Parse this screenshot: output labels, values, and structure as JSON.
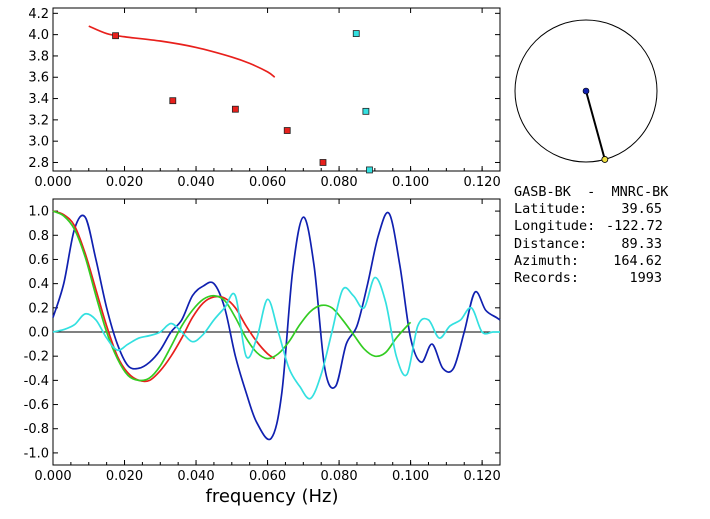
{
  "info": {
    "pair": "GASB-BK  -  MNRC-BK",
    "rows": [
      {
        "label": "Latitude:",
        "value": "39.65"
      },
      {
        "label": "Longitude:",
        "value": "-122.72"
      },
      {
        "label": "Distance:",
        "value": "89.33"
      },
      {
        "label": "Azimuth:",
        "value": "164.62"
      },
      {
        "label": "Records:",
        "value": "1993"
      }
    ]
  },
  "chart_data": [
    {
      "type": "scatter",
      "xlim": [
        0,
        0.125
      ],
      "ylim": [
        2.72,
        4.25
      ],
      "xticks": [
        "0.000",
        "0.020",
        "0.040",
        "0.060",
        "0.080",
        "0.100",
        "0.120"
      ],
      "yticks": [
        "4.2",
        "4.0",
        "3.8",
        "3.6",
        "3.4",
        "3.2",
        "3.0",
        "2.8"
      ],
      "series": [
        {
          "color": "#e8201c",
          "kind": "line",
          "x": [
            0.01,
            0.015,
            0.02,
            0.03,
            0.04,
            0.05,
            0.055,
            0.06,
            0.062
          ],
          "y": [
            4.08,
            4.01,
            3.98,
            3.94,
            3.88,
            3.79,
            3.73,
            3.65,
            3.6
          ]
        },
        {
          "color": "#e8201c",
          "kind": "points",
          "x": [
            0.0175,
            0.0335,
            0.051,
            0.0655,
            0.0755
          ],
          "y": [
            3.99,
            3.38,
            3.3,
            3.1,
            2.8
          ]
        },
        {
          "color": "#33e0e0",
          "kind": "points",
          "x": [
            0.0848,
            0.0875,
            0.0885
          ],
          "y": [
            4.01,
            3.28,
            2.73
          ]
        }
      ]
    },
    {
      "type": "line",
      "xlabel": "frequency (Hz)",
      "xlim": [
        0,
        0.125
      ],
      "ylim": [
        -1.1,
        1.1
      ],
      "xticks": [
        "0.000",
        "0.020",
        "0.040",
        "0.060",
        "0.080",
        "0.100",
        "0.120"
      ],
      "yticks": [
        "1.0",
        "0.8",
        "0.6",
        "0.4",
        "0.2",
        "0.0",
        "-0.2",
        "-0.4",
        "-0.6",
        "-0.8",
        "-1.0"
      ],
      "series": [
        {
          "color": "#1020b0",
          "x": [
            0,
            0.003,
            0.006,
            0.009,
            0.012,
            0.015,
            0.018,
            0.021,
            0.024,
            0.027,
            0.03,
            0.033,
            0.036,
            0.039,
            0.042,
            0.045,
            0.048,
            0.051,
            0.054,
            0.057,
            0.061,
            0.064,
            0.067,
            0.07,
            0.073,
            0.076,
            0.079,
            0.082,
            0.085,
            0.088,
            0.091,
            0.094,
            0.097,
            0.1,
            0.103,
            0.106,
            0.109,
            0.112,
            0.115,
            0.118,
            0.121,
            0.124,
            0.125
          ],
          "y": [
            0.12,
            0.4,
            0.85,
            0.95,
            0.6,
            0.2,
            -0.1,
            -0.28,
            -0.3,
            -0.25,
            -0.15,
            0.0,
            0.1,
            0.3,
            0.38,
            0.4,
            0.2,
            -0.2,
            -0.5,
            -0.75,
            -0.88,
            -0.5,
            0.5,
            0.95,
            0.55,
            -0.3,
            -0.45,
            -0.1,
            0.05,
            0.4,
            0.8,
            0.98,
            0.55,
            -0.05,
            -0.25,
            -0.1,
            -0.3,
            -0.3,
            0.0,
            0.33,
            0.18,
            0.12,
            0.1
          ]
        },
        {
          "color": "#e8201c",
          "x": [
            0,
            0.003,
            0.006,
            0.009,
            0.012,
            0.015,
            0.018,
            0.021,
            0.024,
            0.027,
            0.03,
            0.033,
            0.036,
            0.039,
            0.042,
            0.045,
            0.048,
            0.051,
            0.054,
            0.057,
            0.06,
            0.062
          ],
          "y": [
            1.0,
            0.97,
            0.88,
            0.65,
            0.35,
            0.05,
            -0.2,
            -0.34,
            -0.4,
            -0.4,
            -0.32,
            -0.2,
            -0.05,
            0.12,
            0.24,
            0.29,
            0.28,
            0.2,
            0.05,
            -0.08,
            -0.18,
            -0.22
          ]
        },
        {
          "color": "#33cc22",
          "x": [
            0,
            0.003,
            0.006,
            0.009,
            0.012,
            0.015,
            0.018,
            0.021,
            0.024,
            0.027,
            0.03,
            0.033,
            0.036,
            0.039,
            0.042,
            0.045,
            0.048,
            0.051,
            0.054,
            0.057,
            0.06,
            0.063,
            0.066,
            0.069,
            0.072,
            0.075,
            0.078,
            0.081,
            0.084,
            0.087,
            0.09,
            0.093,
            0.096,
            0.099,
            0.1
          ],
          "y": [
            1.0,
            0.96,
            0.85,
            0.62,
            0.3,
            0.0,
            -0.22,
            -0.36,
            -0.4,
            -0.38,
            -0.28,
            -0.12,
            0.05,
            0.18,
            0.27,
            0.3,
            0.26,
            0.12,
            -0.05,
            -0.17,
            -0.22,
            -0.18,
            -0.08,
            0.06,
            0.17,
            0.22,
            0.2,
            0.1,
            -0.02,
            -0.14,
            -0.2,
            -0.17,
            -0.05,
            0.05,
            0.08
          ]
        },
        {
          "color": "#33e0e0",
          "x": [
            0,
            0.003,
            0.006,
            0.009,
            0.012,
            0.015,
            0.018,
            0.021,
            0.024,
            0.027,
            0.03,
            0.033,
            0.036,
            0.039,
            0.042,
            0.045,
            0.048,
            0.051,
            0.054,
            0.057,
            0.06,
            0.063,
            0.066,
            0.069,
            0.072,
            0.075,
            0.078,
            0.081,
            0.084,
            0.087,
            0.09,
            0.093,
            0.096,
            0.099,
            0.102,
            0.105,
            0.108,
            0.111,
            0.114,
            0.117,
            0.12,
            0.123,
            0.125
          ],
          "y": [
            0.0,
            0.02,
            0.06,
            0.15,
            0.1,
            -0.05,
            -0.15,
            -0.1,
            -0.05,
            -0.03,
            0.0,
            0.07,
            0.0,
            -0.08,
            -0.02,
            0.1,
            0.2,
            0.3,
            -0.2,
            -0.05,
            0.27,
            0.0,
            -0.3,
            -0.45,
            -0.55,
            -0.35,
            0.0,
            0.35,
            0.3,
            0.2,
            0.45,
            0.25,
            -0.2,
            -0.35,
            0.05,
            0.1,
            -0.05,
            0.05,
            0.1,
            0.2,
            0.0,
            0.0,
            0.0
          ]
        }
      ]
    }
  ],
  "station_map": {
    "azimuth_deg": 164.62,
    "center_point_color": "#1020b0",
    "end_point_color": "#f0e040"
  }
}
